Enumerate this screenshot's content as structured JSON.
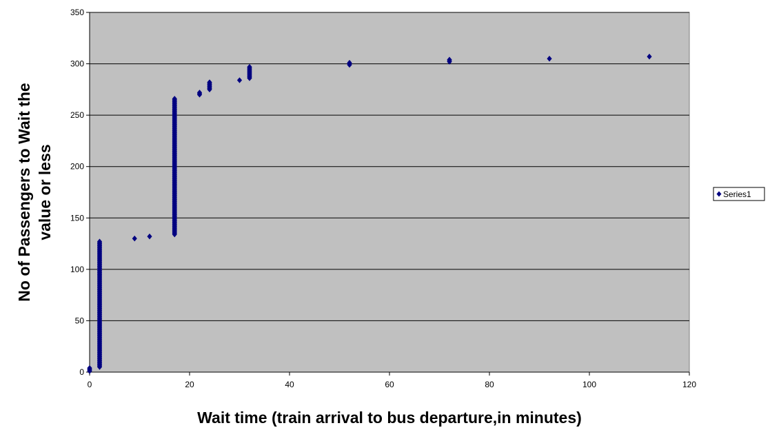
{
  "chart_data": {
    "type": "scatter",
    "title": "",
    "xlabel": "Wait time (train arrival to bus departure,in minutes)",
    "ylabel_lines": [
      "No of Passengers to Wait the",
      "value or less"
    ],
    "xlim": [
      0,
      120
    ],
    "ylim": [
      0,
      350
    ],
    "x_ticks": [
      0,
      20,
      40,
      60,
      80,
      100,
      120
    ],
    "y_ticks": [
      0,
      50,
      100,
      150,
      200,
      250,
      300,
      350
    ],
    "grid": "horizontal major gridlines",
    "plot_background": "#c0c0c0",
    "marker": "diamond",
    "legend_position": "right",
    "series": [
      {
        "name": "Series1",
        "color": "#000080",
        "vertical_runs": [
          {
            "x": 0,
            "y_start": 1,
            "y_end": 4
          },
          {
            "x": 2,
            "y_start": 5,
            "y_end": 127
          },
          {
            "x": 17,
            "y_start": 134,
            "y_end": 266
          },
          {
            "x": 22,
            "y_start": 270,
            "y_end": 272
          },
          {
            "x": 24,
            "y_start": 275,
            "y_end": 282
          },
          {
            "x": 32,
            "y_start": 286,
            "y_end": 297
          },
          {
            "x": 52,
            "y_start": 299,
            "y_end": 301
          },
          {
            "x": 72,
            "y_start": 302,
            "y_end": 304
          }
        ],
        "points": [
          {
            "x": 9,
            "y": 130
          },
          {
            "x": 12,
            "y": 132
          },
          {
            "x": 30,
            "y": 284
          },
          {
            "x": 92,
            "y": 305
          },
          {
            "x": 112,
            "y": 307
          }
        ]
      }
    ]
  }
}
